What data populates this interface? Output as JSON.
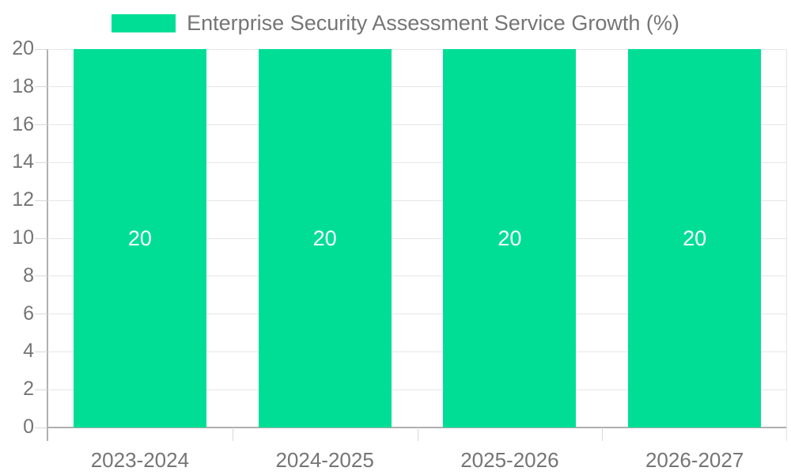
{
  "chart_data": {
    "type": "bar",
    "title": "Enterprise Security Assessment Service Growth (%)",
    "categories": [
      "2023-2024",
      "2024-2025",
      "2025-2026",
      "2026-2027"
    ],
    "values": [
      20,
      20,
      20,
      20
    ],
    "bar_value_labels": [
      "20",
      "20",
      "20",
      "20"
    ],
    "xlabel": "",
    "ylabel": "",
    "ylim": [
      0,
      20
    ],
    "y_ticks": [
      0,
      2,
      4,
      6,
      8,
      10,
      12,
      14,
      16,
      18,
      20
    ],
    "grid": true,
    "legend": {
      "position": "top-center",
      "entries": [
        {
          "label": "Enterprise Security Assessment Service Growth (%)",
          "color": "#00DE96"
        }
      ]
    },
    "colors": {
      "bar": "#00DE96",
      "axis_text": "#757575",
      "value_label": "#ffffff",
      "gridline": "#e6e6e6",
      "tick_line": "#d9d9d9",
      "axis_line": "#b0b0b0",
      "plot_border": "#e3e3e3",
      "background": "#ffffff"
    }
  }
}
